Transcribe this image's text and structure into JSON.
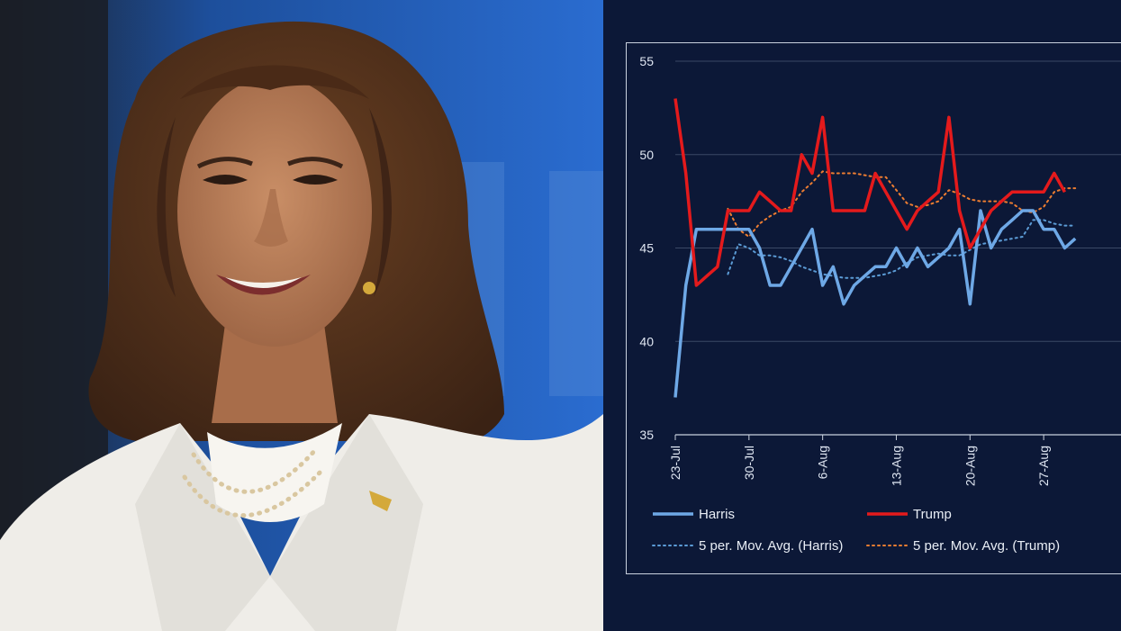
{
  "photo": {
    "subject": "portrait-photo",
    "colors": {
      "background": "#1f5fb8",
      "hair": "#4a2a17",
      "skin": "#b87a55",
      "jacket": "#f2f0ec"
    }
  },
  "chart_data": {
    "type": "line",
    "title": "",
    "xlabel": "",
    "ylabel": "",
    "ylim": [
      35,
      55
    ],
    "yticks": [
      35,
      40,
      45,
      50,
      55
    ],
    "xticks": [
      "23-Jul",
      "30-Jul",
      "6-Aug",
      "13-Aug",
      "20-Aug",
      "27-Aug"
    ],
    "x_range_days": [
      0,
      42
    ],
    "grid": "horizontal",
    "legend_position": "bottom",
    "series": [
      {
        "name": "Harris",
        "style": "solid",
        "color": "#6ea8e6",
        "points": [
          [
            0,
            37
          ],
          [
            1,
            43
          ],
          [
            2,
            46
          ],
          [
            3,
            46
          ],
          [
            4,
            46
          ],
          [
            5,
            46
          ],
          [
            6,
            46
          ],
          [
            7,
            46
          ],
          [
            8,
            45
          ],
          [
            9,
            43
          ],
          [
            10,
            43
          ],
          [
            11,
            44
          ],
          [
            12,
            45
          ],
          [
            13,
            46
          ],
          [
            14,
            43
          ],
          [
            15,
            44
          ],
          [
            16,
            42
          ],
          [
            17,
            43
          ],
          [
            18,
            43.5
          ],
          [
            19,
            44
          ],
          [
            20,
            44
          ],
          [
            21,
            45
          ],
          [
            22,
            44
          ],
          [
            23,
            45
          ],
          [
            24,
            44
          ],
          [
            25,
            44.5
          ],
          [
            26,
            45
          ],
          [
            27,
            46
          ],
          [
            28,
            42
          ],
          [
            29,
            47
          ],
          [
            30,
            45
          ],
          [
            31,
            46
          ],
          [
            32,
            46.5
          ],
          [
            33,
            47
          ],
          [
            34,
            47
          ],
          [
            35,
            46
          ],
          [
            36,
            46
          ],
          [
            37,
            45
          ],
          [
            38,
            45.5
          ]
        ]
      },
      {
        "name": "Trump",
        "style": "solid",
        "color": "#e41a1c",
        "points": [
          [
            0,
            53
          ],
          [
            1,
            49
          ],
          [
            2,
            43
          ],
          [
            3,
            43.5
          ],
          [
            4,
            44
          ],
          [
            5,
            47
          ],
          [
            6,
            47
          ],
          [
            7,
            47
          ],
          [
            8,
            48
          ],
          [
            9,
            47.5
          ],
          [
            10,
            47
          ],
          [
            11,
            47
          ],
          [
            12,
            50
          ],
          [
            13,
            49
          ],
          [
            14,
            52
          ],
          [
            15,
            47
          ],
          [
            16,
            47
          ],
          [
            17,
            47
          ],
          [
            18,
            47
          ],
          [
            19,
            49
          ],
          [
            20,
            48
          ],
          [
            21,
            47
          ],
          [
            22,
            46
          ],
          [
            23,
            47
          ],
          [
            24,
            47.5
          ],
          [
            25,
            48
          ],
          [
            26,
            52
          ],
          [
            27,
            47
          ],
          [
            28,
            45
          ],
          [
            29,
            46
          ],
          [
            30,
            47
          ],
          [
            31,
            47.5
          ],
          [
            32,
            48
          ],
          [
            33,
            48
          ],
          [
            34,
            48
          ],
          [
            35,
            48
          ],
          [
            36,
            49
          ],
          [
            37,
            48
          ]
        ]
      },
      {
        "name": "5 per. Mov. Avg. (Harris)",
        "style": "dotted",
        "color": "#5b9bd5",
        "points": [
          [
            5,
            43.6
          ],
          [
            6,
            45.2
          ],
          [
            7,
            45.0
          ],
          [
            8,
            44.6
          ],
          [
            9,
            44.6
          ],
          [
            10,
            44.5
          ],
          [
            11,
            44.3
          ],
          [
            12,
            44.0
          ],
          [
            13,
            43.8
          ],
          [
            14,
            43.6
          ],
          [
            15,
            43.5
          ],
          [
            16,
            43.4
          ],
          [
            17,
            43.4
          ],
          [
            18,
            43.4
          ],
          [
            19,
            43.5
          ],
          [
            20,
            43.6
          ],
          [
            21,
            43.8
          ],
          [
            22,
            44.2
          ],
          [
            23,
            44.5
          ],
          [
            24,
            44.6
          ],
          [
            25,
            44.7
          ],
          [
            26,
            44.6
          ],
          [
            27,
            44.6
          ],
          [
            28,
            44.9
          ],
          [
            29,
            45.2
          ],
          [
            30,
            45.3
          ],
          [
            31,
            45.4
          ],
          [
            32,
            45.5
          ],
          [
            33,
            45.6
          ],
          [
            34,
            46.5
          ],
          [
            35,
            46.5
          ],
          [
            36,
            46.3
          ],
          [
            37,
            46.2
          ],
          [
            38,
            46.2
          ]
        ]
      },
      {
        "name": "5 per. Mov. Avg. (Trump)",
        "style": "dotted",
        "color": "#ed7d31",
        "points": [
          [
            5,
            47.1
          ],
          [
            6,
            46.0
          ],
          [
            7,
            45.6
          ],
          [
            8,
            46.3
          ],
          [
            9,
            46.7
          ],
          [
            10,
            47.0
          ],
          [
            11,
            47.2
          ],
          [
            12,
            48.0
          ],
          [
            13,
            48.5
          ],
          [
            14,
            49.1
          ],
          [
            15,
            49.0
          ],
          [
            16,
            49.0
          ],
          [
            17,
            49.0
          ],
          [
            18,
            48.9
          ],
          [
            19,
            48.8
          ],
          [
            20,
            48.8
          ],
          [
            21,
            48.1
          ],
          [
            22,
            47.4
          ],
          [
            23,
            47.2
          ],
          [
            24,
            47.3
          ],
          [
            25,
            47.5
          ],
          [
            26,
            48.1
          ],
          [
            27,
            47.9
          ],
          [
            28,
            47.6
          ],
          [
            29,
            47.5
          ],
          [
            30,
            47.5
          ],
          [
            31,
            47.5
          ],
          [
            32,
            47.4
          ],
          [
            33,
            47.0
          ],
          [
            34,
            46.9
          ],
          [
            35,
            47.2
          ],
          [
            36,
            48.0
          ],
          [
            37,
            48.2
          ],
          [
            38,
            48.2
          ]
        ]
      }
    ]
  }
}
